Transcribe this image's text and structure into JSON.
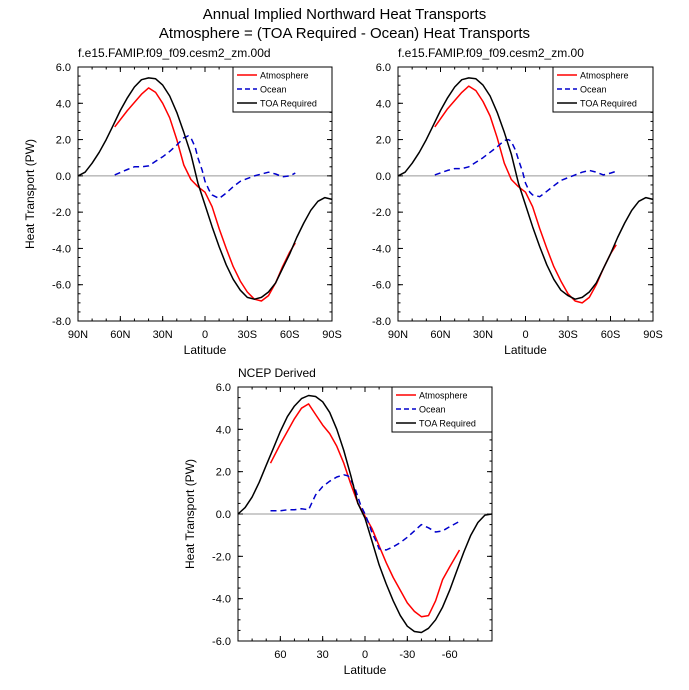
{
  "figure": {
    "title_line1": "Annual Implied Northward Heat Transports",
    "title_line2": "Atmosphere = (TOA Required - Ocean) Heat Transports"
  },
  "colors": {
    "atmosphere": "#ff0000",
    "ocean": "#0000cc",
    "toa": "#000000",
    "zero_line": "#999999"
  },
  "chart_data": [
    {
      "type": "line",
      "title": "f.e15.FAMIP.f09_f09.cesm2_zm.00d",
      "xlabel": "Latitude",
      "ylabel": "Heat Transport (PW)",
      "xlim": [
        90,
        -90
      ],
      "ylim": [
        -8,
        6
      ],
      "xticks": [
        90,
        60,
        30,
        0,
        -30,
        -60,
        -90
      ],
      "xtick_labels": [
        "90N",
        "60N",
        "30N",
        "0",
        "30S",
        "60S",
        "90S"
      ],
      "yticks": [
        -8,
        -6,
        -4,
        -2,
        0,
        2,
        4,
        6
      ],
      "ytick_labels": [
        "-8.0",
        "-6.0",
        "-4.0",
        "-2.0",
        "0.0",
        "2.0",
        "4.0",
        "6.0"
      ],
      "legend_position": "top-right",
      "series": [
        {
          "name": "Atmosphere",
          "color": "#ff0000",
          "dash": "solid",
          "x": [
            64,
            55,
            45,
            40,
            35,
            30,
            25,
            20,
            15,
            10,
            5,
            0,
            -5,
            -10,
            -15,
            -20,
            -25,
            -30,
            -35,
            -40,
            -45,
            -50,
            -55,
            -60,
            -64
          ],
          "y": [
            2.7,
            3.6,
            4.5,
            4.85,
            4.6,
            4.0,
            3.2,
            2.0,
            0.6,
            -0.2,
            -0.6,
            -0.9,
            -1.7,
            -2.9,
            -4.0,
            -5.0,
            -5.8,
            -6.4,
            -6.8,
            -6.9,
            -6.6,
            -5.9,
            -5.0,
            -4.2,
            -3.7
          ]
        },
        {
          "name": "Ocean",
          "color": "#0000cc",
          "dash": "dash",
          "x": [
            64,
            55,
            50,
            45,
            40,
            35,
            30,
            25,
            20,
            15,
            12,
            10,
            7,
            5,
            2,
            0,
            -3,
            -5,
            -10,
            -15,
            -20,
            -25,
            -30,
            -35,
            -40,
            -45,
            -50,
            -55,
            -60,
            -64
          ],
          "y": [
            0.05,
            0.35,
            0.5,
            0.5,
            0.55,
            0.8,
            1.05,
            1.35,
            1.7,
            2.1,
            2.2,
            2.1,
            1.6,
            1.0,
            0.3,
            -0.3,
            -0.8,
            -1.05,
            -1.25,
            -0.95,
            -0.6,
            -0.3,
            -0.15,
            0.0,
            0.1,
            0.2,
            0.1,
            -0.05,
            0.0,
            0.15
          ]
        },
        {
          "name": "TOA Required",
          "color": "#000000",
          "dash": "solid",
          "x": [
            90,
            85,
            80,
            75,
            70,
            65,
            60,
            55,
            50,
            45,
            40,
            35,
            30,
            25,
            20,
            15,
            10,
            5,
            0,
            -5,
            -10,
            -15,
            -20,
            -25,
            -30,
            -35,
            -40,
            -45,
            -50,
            -55,
            -60,
            -65,
            -70,
            -75,
            -80,
            -85,
            -90
          ],
          "y": [
            0.0,
            0.2,
            0.7,
            1.3,
            2.0,
            2.8,
            3.6,
            4.3,
            4.9,
            5.3,
            5.4,
            5.35,
            5.0,
            4.4,
            3.5,
            2.4,
            1.2,
            -0.4,
            -1.6,
            -2.8,
            -3.9,
            -4.9,
            -5.7,
            -6.3,
            -6.7,
            -6.8,
            -6.7,
            -6.4,
            -5.9,
            -5.1,
            -4.3,
            -3.4,
            -2.6,
            -1.9,
            -1.4,
            -1.2,
            -1.3
          ]
        }
      ]
    },
    {
      "type": "line",
      "title": "f.e15.FAMIP.f09_f09.cesm2_zm.00",
      "xlabel": "Latitude",
      "ylabel": "",
      "xlim": [
        90,
        -90
      ],
      "ylim": [
        -8,
        6
      ],
      "xticks": [
        90,
        60,
        30,
        0,
        -30,
        -60,
        -90
      ],
      "xtick_labels": [
        "90N",
        "60N",
        "30N",
        "0",
        "30S",
        "60S",
        "90S"
      ],
      "yticks": [
        -8,
        -6,
        -4,
        -2,
        0,
        2,
        4,
        6
      ],
      "ytick_labels": [
        "-8.0",
        "-6.0",
        "-4.0",
        "-2.0",
        "0.0",
        "2.0",
        "4.0",
        "6.0"
      ],
      "legend_position": "top-right",
      "series": [
        {
          "name": "Atmosphere",
          "color": "#ff0000",
          "dash": "solid",
          "x": [
            64,
            55,
            45,
            40,
            35,
            30,
            25,
            20,
            15,
            10,
            5,
            0,
            -5,
            -10,
            -15,
            -20,
            -25,
            -30,
            -35,
            -40,
            -45,
            -50,
            -55,
            -60,
            -64
          ],
          "y": [
            2.7,
            3.7,
            4.6,
            4.95,
            4.7,
            4.1,
            3.3,
            2.1,
            0.7,
            -0.2,
            -0.6,
            -0.9,
            -1.7,
            -2.9,
            -4.0,
            -5.0,
            -5.8,
            -6.5,
            -6.9,
            -7.0,
            -6.7,
            -6.0,
            -5.1,
            -4.3,
            -3.8
          ]
        },
        {
          "name": "Ocean",
          "color": "#0000cc",
          "dash": "dash",
          "x": [
            64,
            55,
            50,
            45,
            40,
            35,
            30,
            25,
            20,
            15,
            12,
            10,
            7,
            5,
            2,
            0,
            -3,
            -5,
            -10,
            -15,
            -20,
            -25,
            -30,
            -35,
            -40,
            -45,
            -50,
            -55,
            -60,
            -64
          ],
          "y": [
            0.05,
            0.3,
            0.4,
            0.4,
            0.5,
            0.75,
            1.0,
            1.3,
            1.6,
            1.95,
            2.0,
            1.9,
            1.4,
            0.9,
            0.2,
            -0.4,
            -0.9,
            -1.05,
            -1.15,
            -0.85,
            -0.55,
            -0.25,
            -0.1,
            0.05,
            0.2,
            0.3,
            0.2,
            0.05,
            0.15,
            0.25
          ]
        },
        {
          "name": "TOA Required",
          "color": "#000000",
          "dash": "solid",
          "x": [
            90,
            85,
            80,
            75,
            70,
            65,
            60,
            55,
            50,
            45,
            40,
            35,
            30,
            25,
            20,
            15,
            10,
            5,
            0,
            -5,
            -10,
            -15,
            -20,
            -25,
            -30,
            -35,
            -40,
            -45,
            -50,
            -55,
            -60,
            -65,
            -70,
            -75,
            -80,
            -85,
            -90
          ],
          "y": [
            0.0,
            0.2,
            0.7,
            1.3,
            2.0,
            2.8,
            3.6,
            4.3,
            4.9,
            5.3,
            5.4,
            5.35,
            5.0,
            4.4,
            3.5,
            2.4,
            1.2,
            -0.4,
            -1.6,
            -2.8,
            -3.9,
            -4.9,
            -5.7,
            -6.3,
            -6.6,
            -6.8,
            -6.7,
            -6.4,
            -5.9,
            -5.1,
            -4.3,
            -3.4,
            -2.6,
            -1.9,
            -1.4,
            -1.2,
            -1.3
          ]
        }
      ]
    },
    {
      "type": "line",
      "title": "NCEP Derived",
      "xlabel": "Latitude",
      "ylabel": "Heat Transport (PW)",
      "xlim": [
        90,
        -90
      ],
      "ylim": [
        -6,
        6
      ],
      "xticks": [
        60,
        30,
        0,
        -30,
        -60
      ],
      "xtick_labels": [
        "60",
        "30",
        "0",
        "-30",
        "-60"
      ],
      "yticks": [
        -6,
        -4,
        -2,
        0,
        2,
        4,
        6
      ],
      "ytick_labels": [
        "-6.0",
        "-4.0",
        "-2.0",
        "0.0",
        "2.0",
        "4.0",
        "6.0"
      ],
      "legend_position": "top-right",
      "series": [
        {
          "name": "Atmosphere",
          "color": "#ff0000",
          "dash": "solid",
          "x": [
            67,
            60,
            55,
            50,
            45,
            40,
            35,
            30,
            25,
            20,
            15,
            10,
            5,
            0,
            -5,
            -10,
            -15,
            -20,
            -25,
            -30,
            -35,
            -40,
            -45,
            -50,
            -55,
            -60,
            -67
          ],
          "y": [
            2.4,
            3.3,
            3.9,
            4.5,
            5.0,
            5.2,
            4.7,
            4.2,
            3.8,
            3.2,
            2.4,
            1.4,
            0.5,
            -0.1,
            -0.7,
            -1.5,
            -2.3,
            -3.0,
            -3.6,
            -4.2,
            -4.6,
            -4.85,
            -4.8,
            -4.1,
            -3.1,
            -2.5,
            -1.7
          ]
        },
        {
          "name": "Ocean",
          "color": "#0000cc",
          "dash": "dash",
          "x": [
            67,
            60,
            55,
            50,
            45,
            40,
            35,
            30,
            25,
            20,
            15,
            12,
            10,
            7,
            5,
            3,
            0,
            -3,
            -5,
            -8,
            -10,
            -15,
            -20,
            -25,
            -30,
            -35,
            -40,
            -45,
            -50,
            -55,
            -60,
            -67
          ],
          "y": [
            0.15,
            0.15,
            0.2,
            0.2,
            0.25,
            0.2,
            0.9,
            1.3,
            1.55,
            1.75,
            1.85,
            1.8,
            1.6,
            1.2,
            0.8,
            0.4,
            0.0,
            -0.5,
            -0.9,
            -1.3,
            -1.65,
            -1.7,
            -1.55,
            -1.35,
            -1.1,
            -0.8,
            -0.5,
            -0.65,
            -0.85,
            -0.8,
            -0.6,
            -0.35
          ]
        },
        {
          "name": "TOA Required",
          "color": "#000000",
          "dash": "solid",
          "x": [
            90,
            85,
            80,
            75,
            70,
            65,
            60,
            55,
            50,
            45,
            40,
            35,
            30,
            25,
            20,
            15,
            10,
            5,
            0,
            -5,
            -10,
            -15,
            -20,
            -25,
            -30,
            -35,
            -40,
            -45,
            -50,
            -55,
            -60,
            -65,
            -70,
            -75,
            -80,
            -85,
            -90
          ],
          "y": [
            0.0,
            0.3,
            0.8,
            1.5,
            2.3,
            3.1,
            3.9,
            4.6,
            5.1,
            5.45,
            5.6,
            5.55,
            5.3,
            4.8,
            4.0,
            3.0,
            1.8,
            0.5,
            -0.2,
            -1.3,
            -2.4,
            -3.3,
            -4.1,
            -4.8,
            -5.3,
            -5.55,
            -5.6,
            -5.4,
            -5.0,
            -4.4,
            -3.6,
            -2.7,
            -1.8,
            -1.0,
            -0.4,
            -0.05,
            0.0
          ]
        }
      ]
    }
  ]
}
